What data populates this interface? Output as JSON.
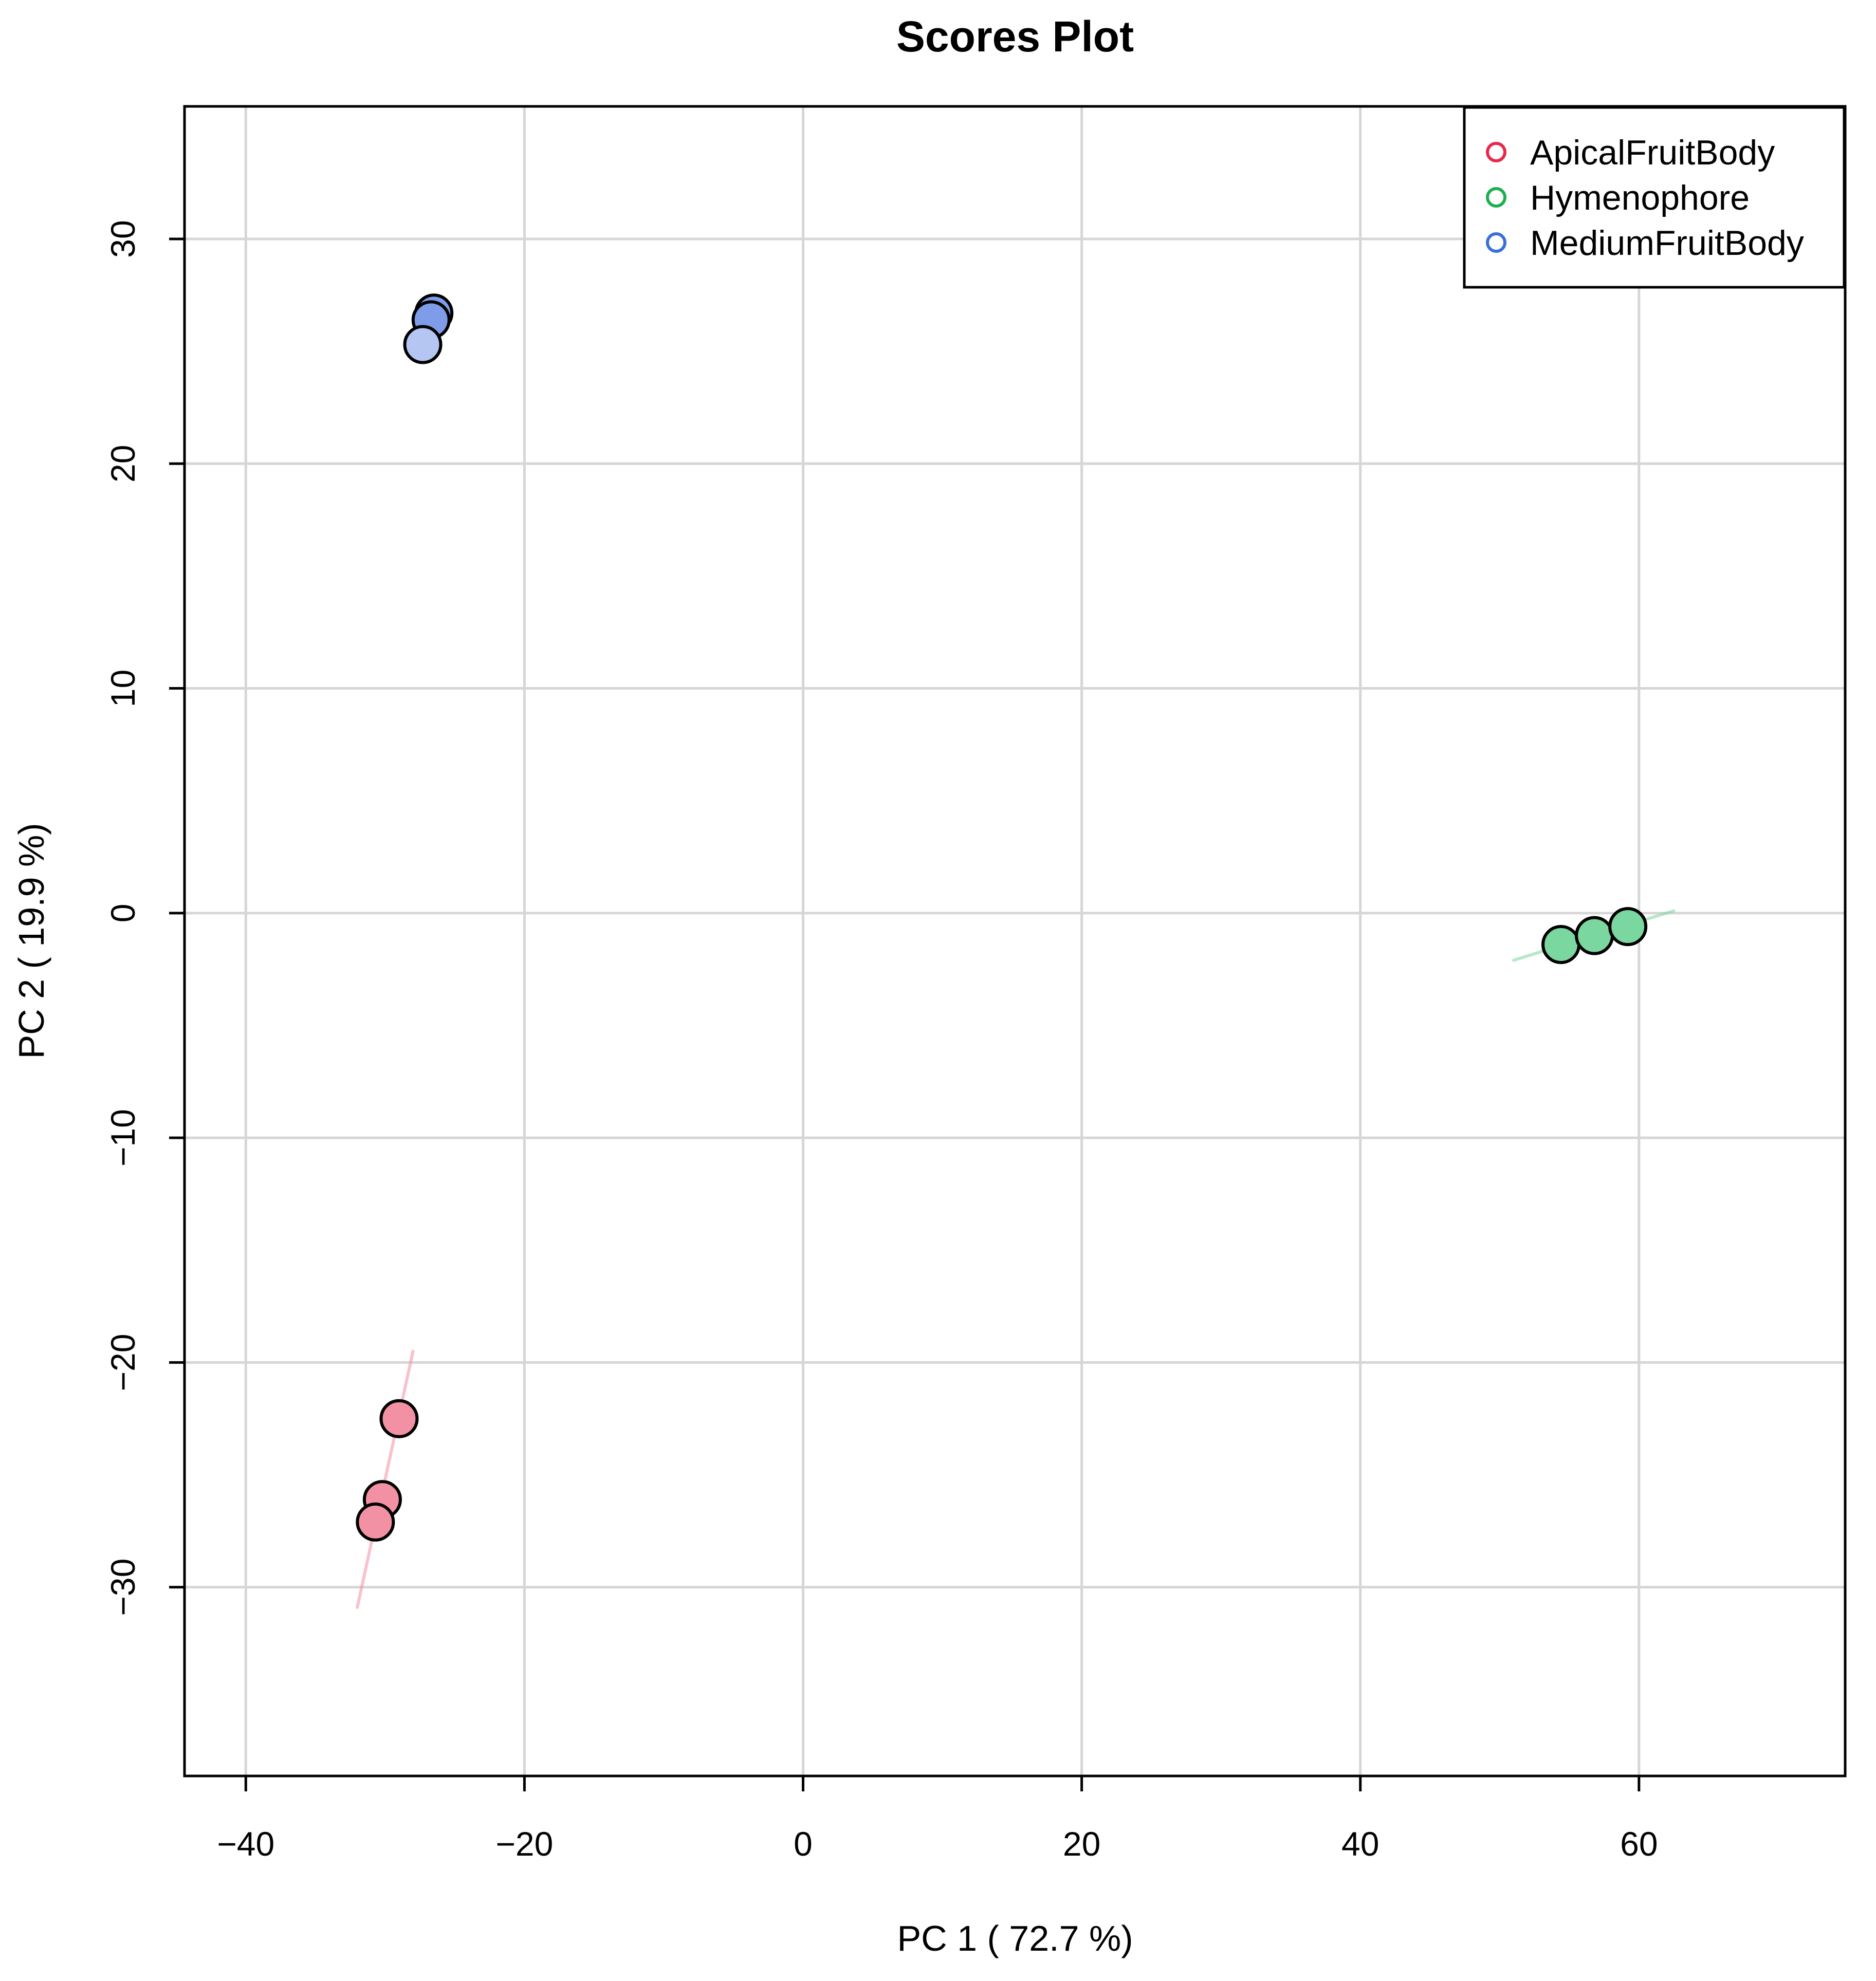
{
  "chart_data": {
    "type": "scatter",
    "title": "Scores Plot",
    "xlabel": "PC 1 ( 72.7 %)",
    "ylabel": "PC 2 ( 19.9 %)",
    "xlim": [
      -44.4,
      74.8
    ],
    "ylim": [
      -38.4,
      35.9
    ],
    "xticks": [
      -40,
      -20,
      0,
      20,
      40,
      60
    ],
    "yticks": [
      -30,
      -20,
      -10,
      0,
      10,
      20,
      30
    ],
    "grid": true,
    "legend_position": "top-right",
    "series": [
      {
        "name": "ApicalFruitBody",
        "color": "#E8274B",
        "fill": "#F391A4",
        "points": [
          {
            "x": -29.0,
            "y": -22.5
          },
          {
            "x": -30.2,
            "y": -26.1
          },
          {
            "x": -30.7,
            "y": -27.1
          }
        ],
        "ellipse": {
          "x1": -32.0,
          "y1": -30.9,
          "x2": -28.0,
          "y2": -19.5
        }
      },
      {
        "name": "Hymenophore",
        "color": "#19B050",
        "fill": "#7BD7A0",
        "points": [
          {
            "x": 54.4,
            "y": -1.4
          },
          {
            "x": 56.8,
            "y": -1.0
          },
          {
            "x": 59.2,
            "y": -0.6
          }
        ],
        "ellipse": {
          "x1": 51.0,
          "y1": -2.1,
          "x2": 62.5,
          "y2": 0.1
        }
      },
      {
        "name": "MediumFruitBody",
        "color": "#3B6FD6",
        "fill": "#7E9CE8",
        "points": [
          {
            "x": -26.5,
            "y": 26.7
          },
          {
            "x": -26.7,
            "y": 26.4
          },
          {
            "x": -27.3,
            "y": 25.3
          }
        ],
        "point_fills": [
          "#7E9CE8",
          "#7E9CE8",
          "#B5C6F2"
        ],
        "ellipse": null
      }
    ]
  }
}
